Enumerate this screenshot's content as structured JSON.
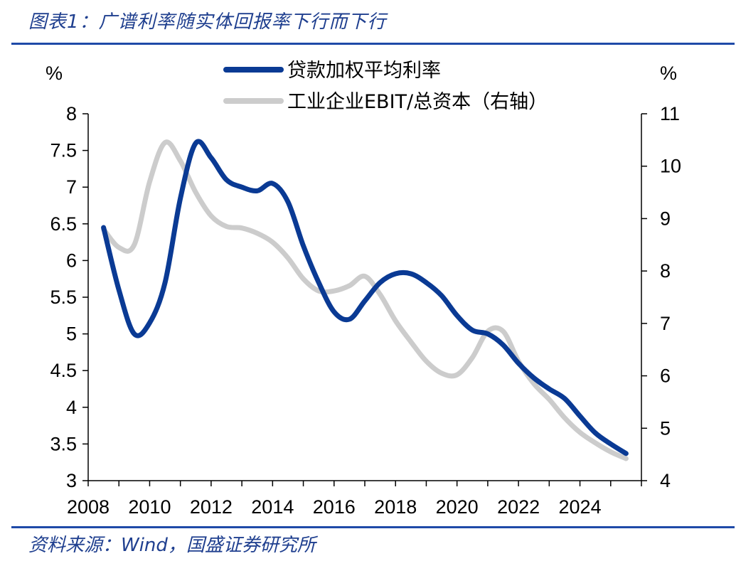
{
  "figure": {
    "title": "图表1：广谱利率随实体回报率下行而下行",
    "source": "资料来源：Wind，国盛证券研究所"
  },
  "colors": {
    "rule": "#1f4aa8",
    "series_loan": "#0a3a94",
    "series_ebit": "#cccccc",
    "title": "#1f3f8f"
  },
  "chart_data": {
    "type": "line",
    "title": "",
    "xlabel": "",
    "left_axis_unit": "%",
    "right_axis_unit": "%",
    "x_ticks": [
      "2008",
      "2010",
      "2012",
      "2014",
      "2016",
      "2018",
      "2020",
      "2022",
      "2024"
    ],
    "xlim": [
      2008,
      2026
    ],
    "ylim_left": [
      3,
      8
    ],
    "ylim_right": [
      4,
      11
    ],
    "yticks_left": [
      "3",
      "3.5",
      "4",
      "4.5",
      "5",
      "5.5",
      "6",
      "6.5",
      "7",
      "7.5",
      "8"
    ],
    "yticks_right": [
      "4",
      "5",
      "6",
      "7",
      "8",
      "9",
      "10",
      "11"
    ],
    "legend_position": "top-center",
    "series": [
      {
        "name": "贷款加权平均利率",
        "axis": "left",
        "x": [
          2008.5,
          2009.0,
          2009.5,
          2010.0,
          2010.5,
          2011.0,
          2011.5,
          2012.0,
          2012.5,
          2013.0,
          2013.5,
          2014.0,
          2014.5,
          2015.0,
          2015.5,
          2016.0,
          2016.5,
          2017.0,
          2017.5,
          2018.0,
          2018.5,
          2019.0,
          2019.5,
          2020.0,
          2020.5,
          2021.0,
          2021.5,
          2022.0,
          2022.5,
          2023.0,
          2023.5,
          2024.0,
          2024.5,
          2025.0,
          2025.5
        ],
        "values": [
          6.45,
          5.6,
          5.0,
          5.15,
          5.7,
          6.85,
          7.6,
          7.4,
          7.1,
          7.0,
          6.95,
          7.05,
          6.8,
          6.2,
          5.7,
          5.3,
          5.2,
          5.45,
          5.7,
          5.82,
          5.82,
          5.7,
          5.52,
          5.25,
          5.05,
          5.0,
          4.85,
          4.6,
          4.4,
          4.25,
          4.12,
          3.88,
          3.65,
          3.5,
          3.37
        ]
      },
      {
        "name": "工业企业EBIT/总资本（右轴）",
        "axis": "right",
        "x": [
          2008.5,
          2009.0,
          2009.5,
          2010.0,
          2010.5,
          2011.0,
          2011.5,
          2012.0,
          2012.5,
          2013.0,
          2013.5,
          2014.0,
          2014.5,
          2015.0,
          2015.5,
          2016.0,
          2016.5,
          2017.0,
          2017.5,
          2018.0,
          2018.5,
          2019.0,
          2019.5,
          2020.0,
          2020.5,
          2021.0,
          2021.5,
          2022.0,
          2022.5,
          2023.0,
          2023.5,
          2024.0,
          2024.5,
          2025.0,
          2025.5
        ],
        "values": [
          8.8,
          8.45,
          8.5,
          9.7,
          10.45,
          10.1,
          9.5,
          9.05,
          8.85,
          8.82,
          8.72,
          8.55,
          8.25,
          7.85,
          7.62,
          7.62,
          7.72,
          7.9,
          7.55,
          7.05,
          6.65,
          6.28,
          6.05,
          6.02,
          6.35,
          6.85,
          6.85,
          6.28,
          5.85,
          5.55,
          5.2,
          4.92,
          4.72,
          4.55,
          4.42
        ]
      }
    ]
  }
}
